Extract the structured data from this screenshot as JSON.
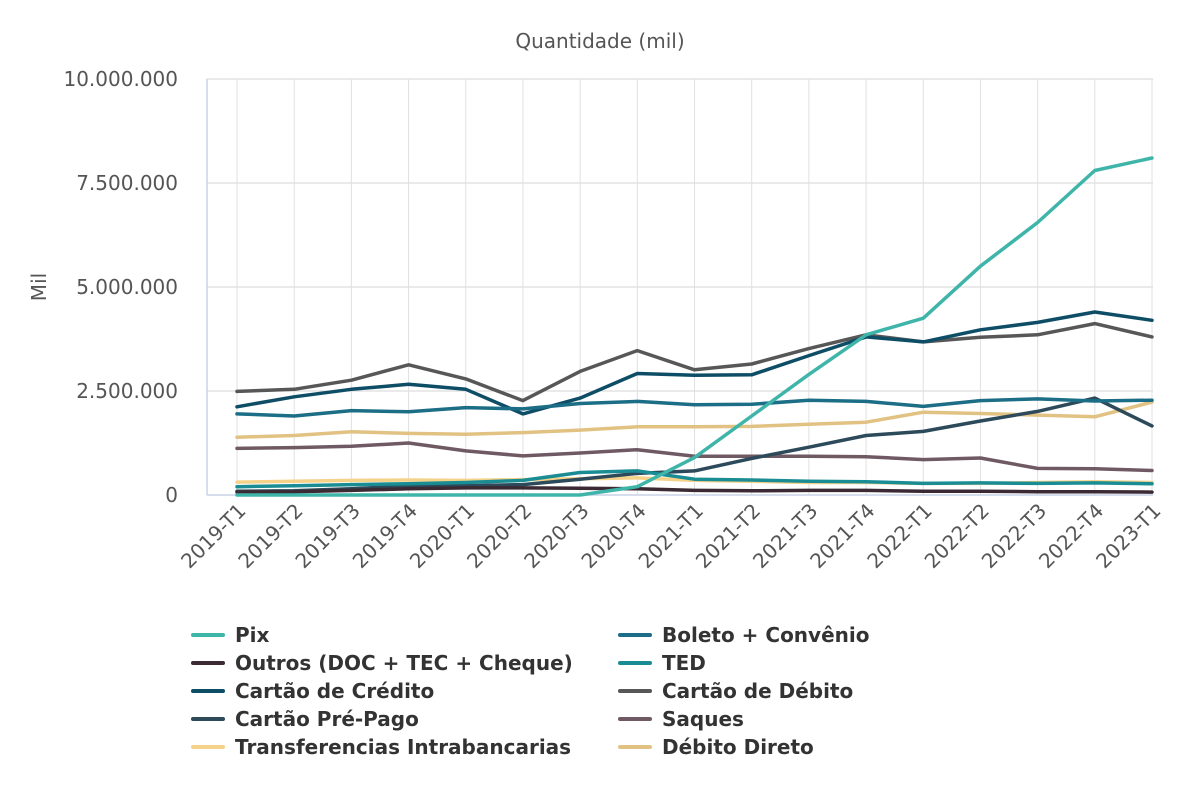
{
  "chart_data": {
    "type": "line",
    "title": "Quantidade (mil)",
    "xlabel": "",
    "ylabel": "Mil",
    "ylim": [
      0,
      10000000
    ],
    "yticks": [
      {
        "value": 0,
        "label": "0"
      },
      {
        "value": 2500000,
        "label": "2.500.000"
      },
      {
        "value": 5000000,
        "label": "5.000.000"
      },
      {
        "value": 7500000,
        "label": "7.500.000"
      },
      {
        "value": 10000000,
        "label": "10.000.000"
      }
    ],
    "grid": true,
    "legend_position": "bottom",
    "categories": [
      "2019-T1",
      "2019-T2",
      "2019-T3",
      "2019-T4",
      "2020-T1",
      "2020-T2",
      "2020-T3",
      "2020-T4",
      "2021-T1",
      "2021-T2",
      "2021-T3",
      "2021-T4",
      "2022-T1",
      "2022-T2",
      "2022-T3",
      "2022-T4",
      "2023-T1"
    ],
    "series": [
      {
        "name": "Pix",
        "color": "#3fb5aa",
        "values": [
          0,
          0,
          0,
          0,
          0,
          0,
          0,
          200000,
          900000,
          1900000,
          2900000,
          3850000,
          4250000,
          5500000,
          6550000,
          7800000,
          8100000
        ]
      },
      {
        "name": "Boleto + Convênio",
        "color": "#1b6e86",
        "values": [
          1950000,
          1900000,
          2030000,
          2000000,
          2100000,
          2070000,
          2200000,
          2250000,
          2170000,
          2180000,
          2280000,
          2250000,
          2130000,
          2270000,
          2310000,
          2260000,
          2280000
        ]
      },
      {
        "name": "Outros (DOC + TEC + Cheque)",
        "color": "#3b2a33",
        "values": [
          70000,
          80000,
          110000,
          150000,
          170000,
          170000,
          160000,
          150000,
          110000,
          100000,
          110000,
          110000,
          90000,
          90000,
          80000,
          80000,
          70000
        ]
      },
      {
        "name": "TED",
        "color": "#1a8d94",
        "values": [
          200000,
          220000,
          250000,
          270000,
          300000,
          350000,
          540000,
          580000,
          380000,
          360000,
          330000,
          320000,
          280000,
          290000,
          280000,
          290000,
          270000
        ]
      },
      {
        "name": "Cartão de Crédito",
        "color": "#0e4d66",
        "values": [
          2120000,
          2360000,
          2540000,
          2660000,
          2540000,
          1950000,
          2330000,
          2920000,
          2880000,
          2890000,
          3350000,
          3800000,
          3680000,
          3970000,
          4150000,
          4400000,
          4200000
        ]
      },
      {
        "name": "Cartão de Débito",
        "color": "#575757",
        "values": [
          2490000,
          2540000,
          2760000,
          3130000,
          2790000,
          2270000,
          2970000,
          3470000,
          3010000,
          3150000,
          3520000,
          3850000,
          3680000,
          3790000,
          3850000,
          4120000,
          3800000
        ]
      },
      {
        "name": "Cartão Pré-Pago",
        "color": "#2c4a5a",
        "values": [
          90000,
          100000,
          150000,
          220000,
          220000,
          250000,
          380000,
          520000,
          580000,
          880000,
          1150000,
          1430000,
          1530000,
          1780000,
          2010000,
          2330000,
          1660000
        ]
      },
      {
        "name": "Saques",
        "color": "#6f5a63",
        "values": [
          1120000,
          1140000,
          1170000,
          1250000,
          1060000,
          940000,
          1010000,
          1090000,
          930000,
          930000,
          930000,
          920000,
          850000,
          890000,
          640000,
          630000,
          590000
        ]
      },
      {
        "name": "Transferencias Intrabancarias",
        "color": "#f5d28a",
        "values": [
          310000,
          330000,
          350000,
          360000,
          350000,
          370000,
          390000,
          410000,
          350000,
          330000,
          300000,
          300000,
          280000,
          280000,
          300000,
          320000,
          300000
        ]
      },
      {
        "name": "Débito Direto",
        "color": "#e2c283",
        "values": [
          1390000,
          1430000,
          1520000,
          1480000,
          1460000,
          1500000,
          1560000,
          1640000,
          1640000,
          1650000,
          1700000,
          1750000,
          1990000,
          1960000,
          1920000,
          1880000,
          2230000
        ]
      }
    ]
  }
}
